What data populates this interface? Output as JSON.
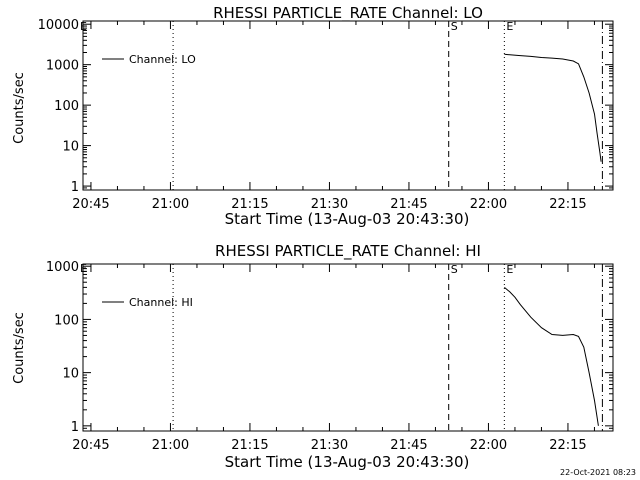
{
  "footer_timestamp": "22-Oct-2021 08:23",
  "chart_data": [
    {
      "type": "line",
      "title": "RHESSI PARTICLE_RATE Channel: LO",
      "xlabel": "Start Time (13-Aug-03 20:43:30)",
      "ylabel": "Counts/sec",
      "yscale": "log",
      "ylim": [
        0.8,
        12000
      ],
      "xlim": [
        "20:43:30",
        "22:23:30"
      ],
      "x_ticks": [
        "20:45",
        "21:00",
        "21:15",
        "21:30",
        "21:45",
        "22:00",
        "22:15"
      ],
      "y_ticks": [
        "1",
        "10",
        "100",
        "1000",
        "10000"
      ],
      "legend": {
        "label": "Channel: LO",
        "position": "top-left"
      },
      "markers": [
        {
          "label": "",
          "time": "21:00:30",
          "style": "dotted"
        },
        {
          "label": "S",
          "time": "21:52:30",
          "style": "dashed"
        },
        {
          "label": "E",
          "time": "22:03:00",
          "style": "dotted"
        },
        {
          "label": "",
          "time": "22:21:30",
          "style": "dash-dot"
        }
      ],
      "corner_label": "E",
      "series": [
        {
          "name": "Channel: LO",
          "points": [
            [
              "22:03:00",
              1800
            ],
            [
              "22:04:00",
              1750
            ],
            [
              "22:06:00",
              1680
            ],
            [
              "22:08:00",
              1600
            ],
            [
              "22:10:00",
              1500
            ],
            [
              "22:12:00",
              1450
            ],
            [
              "22:14:00",
              1380
            ],
            [
              "22:16:00",
              1230
            ],
            [
              "22:17:00",
              1050
            ],
            [
              "22:18:00",
              500
            ],
            [
              "22:19:00",
              200
            ],
            [
              "22:20:00",
              60
            ],
            [
              "22:20:30",
              20
            ],
            [
              "22:21:00",
              7
            ],
            [
              "22:21:15",
              4
            ]
          ]
        }
      ]
    },
    {
      "type": "line",
      "title": "RHESSI PARTICLE_RATE Channel: HI",
      "xlabel": "Start Time (13-Aug-03 20:43:30)",
      "ylabel": "Counts/sec",
      "yscale": "log",
      "ylim": [
        0.8,
        1100
      ],
      "xlim": [
        "20:43:30",
        "22:23:30"
      ],
      "x_ticks": [
        "20:45",
        "21:00",
        "21:15",
        "21:30",
        "21:45",
        "22:00",
        "22:15"
      ],
      "y_ticks": [
        "1",
        "10",
        "100",
        "1000"
      ],
      "legend": {
        "label": "Channel: HI",
        "position": "top-left"
      },
      "markers": [
        {
          "label": "",
          "time": "21:00:30",
          "style": "dotted"
        },
        {
          "label": "S",
          "time": "21:52:30",
          "style": "dashed"
        },
        {
          "label": "E",
          "time": "22:03:00",
          "style": "dotted"
        },
        {
          "label": "",
          "time": "22:21:30",
          "style": "dash-dot"
        }
      ],
      "corner_label": "E",
      "series": [
        {
          "name": "Channel: HI",
          "points": [
            [
              "22:03:00",
              400
            ],
            [
              "22:04:00",
              330
            ],
            [
              "22:05:00",
              260
            ],
            [
              "22:06:00",
              190
            ],
            [
              "22:08:00",
              110
            ],
            [
              "22:10:00",
              70
            ],
            [
              "22:12:00",
              52
            ],
            [
              "22:14:00",
              50
            ],
            [
              "22:16:00",
              52
            ],
            [
              "22:17:00",
              48
            ],
            [
              "22:18:00",
              30
            ],
            [
              "22:19:00",
              10
            ],
            [
              "22:20:00",
              3
            ],
            [
              "22:20:45",
              1
            ]
          ]
        }
      ]
    }
  ]
}
